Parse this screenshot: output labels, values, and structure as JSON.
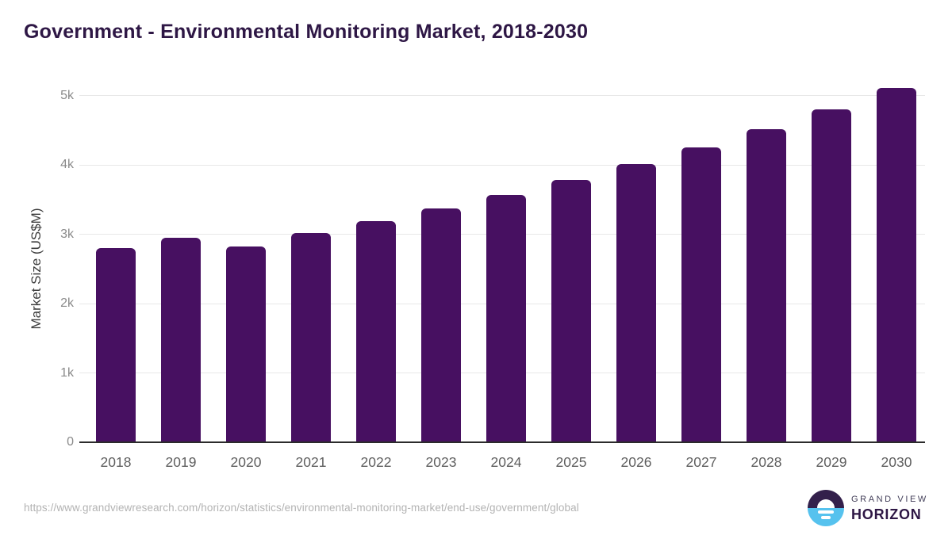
{
  "header": {
    "title": "Government - Environmental Monitoring Market, 2018-2030",
    "title_color": "#2e1745"
  },
  "chart_data": {
    "type": "bar",
    "title": "Government - Environmental Monitoring Market, 2018-2030",
    "categories": [
      "2018",
      "2019",
      "2020",
      "2021",
      "2022",
      "2023",
      "2024",
      "2025",
      "2026",
      "2027",
      "2028",
      "2029",
      "2030"
    ],
    "values": [
      2800,
      2950,
      2820,
      3020,
      3190,
      3375,
      3570,
      3780,
      4015,
      4250,
      4515,
      4800,
      5110
    ],
    "xlabel": "",
    "ylabel": "Market Size (US$M)",
    "ylim": [
      0,
      5200
    ],
    "yticks": [
      {
        "label": "0",
        "value": 0
      },
      {
        "label": "1k",
        "value": 1000
      },
      {
        "label": "2k",
        "value": 2000
      },
      {
        "label": "3k",
        "value": 3000
      },
      {
        "label": "4k",
        "value": 4000
      },
      {
        "label": "5k",
        "value": 5000
      }
    ],
    "grid": true,
    "legend_position": "none",
    "bar_color": "#471061",
    "gridline_color": "#e8e8e8",
    "axis_line_color": "#2b2b2b",
    "ytick_color": "#8a8a8a",
    "xtick_color": "#5f5f5f"
  },
  "footer": {
    "source_url": "https://www.grandviewresearch.com/horizon/statistics/environmental-monitoring-market/end-use/government/global",
    "logo": {
      "line1": "GRAND VIEW",
      "line2": "HORIZON",
      "line2_color": "#2e1745",
      "mark_top_color": "#33204b",
      "mark_bottom_color": "#56c2ee"
    }
  }
}
